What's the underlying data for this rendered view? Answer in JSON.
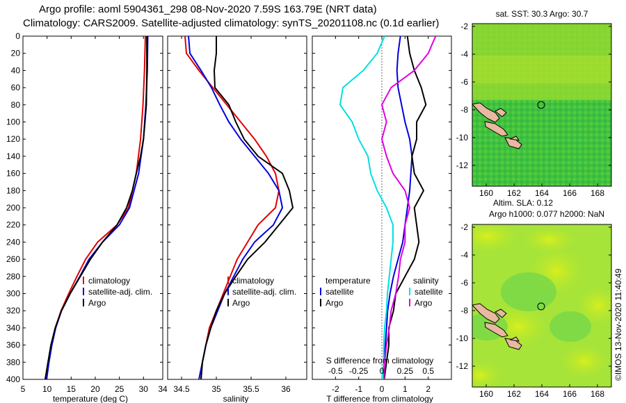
{
  "header": {
    "line1": "Argo profile: aoml 5904361_298 08-Nov-2020 7.59S 163.79E (NRT data)",
    "line2": "Climatology: CARS2009. Satellite-adjusted climatology: synTS_20201108.nc (0.1d earlier)"
  },
  "credit": "©IMOS 13-Nov-2020 11:40:49",
  "colors": {
    "climatology": "#e00000",
    "satellite": "#0000dd",
    "argo": "#000000",
    "s_sat": "#00e0e0",
    "s_argo": "#e000e0",
    "land": "#e8b8a0"
  },
  "chart_data": [
    {
      "type": "line",
      "id": "temperature",
      "xlabel": "temperature (deg C)",
      "ylabel": "",
      "xlim": [
        5,
        34
      ],
      "ylim": [
        400,
        0
      ],
      "xticks": [
        5,
        10,
        15,
        20,
        25,
        30,
        34
      ],
      "yticks": [
        0,
        20,
        40,
        60,
        80,
        100,
        120,
        140,
        160,
        180,
        200,
        220,
        240,
        260,
        280,
        300,
        320,
        340,
        360,
        380,
        400
      ],
      "legend": {
        "position": "lower-middle",
        "entries": [
          "climatology",
          "satellite-adj. clim.",
          "Argo"
        ]
      },
      "series": [
        {
          "name": "climatology",
          "color": "red",
          "depth": [
            0,
            40,
            80,
            120,
            160,
            200,
            220,
            240,
            260,
            280,
            300,
            320,
            340,
            360,
            380,
            400
          ],
          "values": [
            30.4,
            30.2,
            29.9,
            29.4,
            28.5,
            26.9,
            24.5,
            20.5,
            18,
            16.2,
            14.5,
            12.9,
            11.7,
            10.9,
            10.3,
            9.8
          ]
        },
        {
          "name": "satellite-adj. clim.",
          "color": "blue",
          "depth": [
            0,
            40,
            80,
            120,
            160,
            200,
            220,
            240,
            260,
            280,
            300,
            320,
            340,
            360,
            380,
            400
          ],
          "values": [
            30.9,
            30.8,
            30.5,
            30,
            29,
            27.1,
            25,
            21.5,
            18.7,
            16.8,
            14.8,
            13,
            11.8,
            11,
            10.4,
            9.9
          ]
        },
        {
          "name": "Argo",
          "color": "black",
          "depth": [
            0,
            40,
            80,
            100,
            120,
            140,
            160,
            180,
            200,
            220,
            240,
            260,
            280,
            300,
            320,
            340,
            360,
            380,
            400
          ],
          "values": [
            30.7,
            30.7,
            30.6,
            30.3,
            30,
            29.4,
            28.5,
            27.7,
            26.5,
            24.5,
            21.5,
            19,
            16.9,
            14.8,
            13,
            11.7,
            10.8,
            10.2,
            9.6
          ]
        }
      ]
    },
    {
      "type": "line",
      "id": "salinity",
      "xlabel": "salinity",
      "ylabel": "",
      "xlim": [
        34.3,
        36.3
      ],
      "ylim": [
        400,
        0
      ],
      "xticks": [
        34.5,
        35,
        35.5,
        36
      ],
      "legend": {
        "position": "lower-middle",
        "entries": [
          "climatology",
          "satellite-adj. clim.",
          "Argo"
        ]
      },
      "series": [
        {
          "name": "climatology",
          "color": "red",
          "depth": [
            0,
            20,
            40,
            60,
            80,
            100,
            120,
            140,
            160,
            180,
            200,
            220,
            240,
            260,
            280,
            300,
            320,
            340,
            360,
            380,
            400
          ],
          "values": [
            34.55,
            34.57,
            34.75,
            34.95,
            35.15,
            35.35,
            35.55,
            35.72,
            35.85,
            35.9,
            35.85,
            35.6,
            35.45,
            35.3,
            35.2,
            35.1,
            35.0,
            34.9,
            34.85,
            34.8,
            34.78
          ]
        },
        {
          "name": "satellite-adj. clim.",
          "color": "blue",
          "depth": [
            0,
            20,
            40,
            60,
            80,
            100,
            120,
            140,
            160,
            180,
            200,
            220,
            240,
            260,
            280,
            300,
            320,
            340,
            360,
            380,
            400
          ],
          "values": [
            34.6,
            34.62,
            34.78,
            34.93,
            35.05,
            35.18,
            35.35,
            35.55,
            35.75,
            35.9,
            35.95,
            35.82,
            35.55,
            35.38,
            35.25,
            35.12,
            35.02,
            34.92,
            34.85,
            34.8,
            34.75
          ]
        },
        {
          "name": "Argo",
          "color": "black",
          "depth": [
            0,
            20,
            40,
            60,
            80,
            100,
            120,
            140,
            160,
            180,
            200,
            220,
            240,
            260,
            280,
            300,
            320,
            340,
            360,
            380,
            400
          ],
          "values": [
            35.0,
            35.0,
            34.97,
            34.98,
            35.18,
            35.28,
            35.4,
            35.6,
            35.95,
            36.05,
            36.1,
            35.9,
            35.7,
            35.45,
            35.28,
            35.12,
            35.0,
            34.92,
            34.85,
            34.8,
            34.78
          ]
        }
      ]
    },
    {
      "type": "line",
      "id": "difference",
      "xlabel": "T difference from climatology",
      "ylabel": "",
      "xlim": [
        -3,
        3
      ],
      "ylim": [
        400,
        0
      ],
      "xticks": [
        -2,
        -1,
        0,
        1,
        2
      ],
      "xticks_s": [
        -0.5,
        -0.25,
        0,
        0.25,
        0.5
      ],
      "xlabel_s": "S difference from climatology",
      "legend": {
        "position": "lower-left",
        "entries": [
          "temperature",
          "satellite",
          "Argo",
          "salinity",
          "satellite",
          "Argo"
        ]
      },
      "series": [
        {
          "name": "T satellite",
          "color": "blue",
          "depth": [
            0,
            20,
            40,
            60,
            80,
            100,
            120,
            140,
            160,
            180,
            200,
            220,
            240,
            260,
            280,
            300,
            320,
            340,
            360,
            380,
            400
          ],
          "values": [
            0.8,
            0.7,
            0.65,
            0.7,
            0.85,
            1.0,
            1.2,
            1.3,
            1.25,
            1.2,
            1.1,
            1.0,
            0.9,
            0.7,
            0.5,
            0.35,
            0.25,
            0.2,
            0.15,
            0.1,
            0.1
          ]
        },
        {
          "name": "T Argo",
          "color": "black",
          "depth": [
            0,
            20,
            40,
            60,
            80,
            100,
            120,
            140,
            160,
            180,
            200,
            220,
            240,
            260,
            280,
            300,
            320,
            340,
            360,
            380,
            400
          ],
          "values": [
            1.1,
            1.2,
            1.4,
            1.7,
            1.9,
            1.5,
            1.5,
            1.3,
            1.4,
            1.8,
            1.4,
            1.5,
            1.6,
            1.4,
            1.0,
            0.6,
            0.5,
            0.3,
            0.3,
            0.2,
            0.1
          ]
        },
        {
          "name": "S satellite",
          "color": "cyan",
          "depth": [
            0,
            20,
            40,
            60,
            80,
            100,
            120,
            140,
            160,
            180,
            200,
            220,
            240,
            260,
            280,
            300,
            320,
            340,
            360,
            380,
            400
          ],
          "values": [
            0.03,
            -0.05,
            -0.2,
            -0.42,
            -0.45,
            -0.32,
            -0.25,
            -0.15,
            -0.12,
            -0.05,
            0.05,
            0.12,
            0.12,
            0.1,
            0.08,
            0.06,
            0.05,
            0.03,
            0.02,
            0.02,
            0.0
          ]
        },
        {
          "name": "S Argo",
          "color": "magenta",
          "depth": [
            0,
            20,
            40,
            60,
            80,
            100,
            120,
            140,
            160,
            180,
            200,
            220,
            240,
            260,
            280,
            300,
            320,
            340,
            360,
            380,
            400
          ],
          "values": [
            0.58,
            0.5,
            0.35,
            0.1,
            0.0,
            0.05,
            0.0,
            0.05,
            0.12,
            0.25,
            0.3,
            0.25,
            0.25,
            0.2,
            0.18,
            0.15,
            0.1,
            0.08,
            0.05,
            0.03,
            0.02
          ]
        }
      ]
    },
    {
      "type": "heatmap",
      "id": "sst-map",
      "title": "sat. SST: 30.3 Argo: 30.7",
      "xlim": [
        159,
        169
      ],
      "ylim": [
        -13.5,
        -1.8
      ],
      "xticks": [
        160,
        162,
        164,
        166,
        168
      ],
      "yticks": [
        -2,
        -4,
        -6,
        -8,
        -10,
        -12
      ],
      "marker": {
        "lon": 163.79,
        "lat": -7.59
      }
    },
    {
      "type": "heatmap",
      "id": "sla-map",
      "title": "Altim. SLA: 0.12",
      "subtitle": "Argo h1000: 0.077 h2000: NaN",
      "xlim": [
        159,
        169
      ],
      "ylim": [
        -13.5,
        -1.8
      ],
      "xticks": [
        160,
        162,
        164,
        166,
        168
      ],
      "yticks": [
        -2,
        -4,
        -6,
        -8,
        -10,
        -12
      ],
      "marker": {
        "lon": 163.79,
        "lat": -7.59
      }
    }
  ]
}
